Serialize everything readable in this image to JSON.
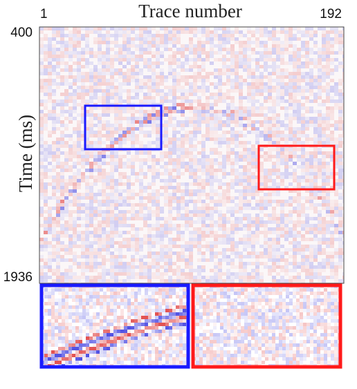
{
  "chart_data": {
    "type": "image",
    "title": "Trace number",
    "ylabel": "Time (ms)",
    "xlim": [
      1,
      192
    ],
    "xticks": [
      1,
      192
    ],
    "ylim": [
      400,
      1936
    ],
    "yticks": [
      400,
      1936
    ]
  }
}
